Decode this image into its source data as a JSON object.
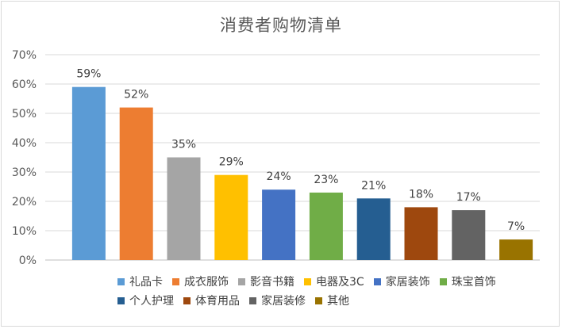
{
  "chart_data": {
    "type": "bar",
    "title": "消费者购物清单",
    "categories": [
      "礼品卡",
      "成衣服饰",
      "影音书籍",
      "电器及3C",
      "家居装饰",
      "珠宝首饰",
      "个人护理",
      "体育用品",
      "家居装修",
      "其他"
    ],
    "values": [
      59,
      52,
      35,
      29,
      24,
      23,
      21,
      18,
      17,
      7
    ],
    "value_labels": [
      "59%",
      "52%",
      "35%",
      "29%",
      "24%",
      "23%",
      "21%",
      "18%",
      "17%",
      "7%"
    ],
    "colors": [
      "#5b9bd5",
      "#ed7d31",
      "#a5a5a5",
      "#ffc000",
      "#4472c4",
      "#70ad47",
      "#255e91",
      "#9e480e",
      "#636363",
      "#997300"
    ],
    "y_ticks": [
      "0%",
      "10%",
      "20%",
      "30%",
      "40%",
      "50%",
      "60%",
      "70%"
    ],
    "ylim": [
      0,
      70
    ],
    "grid": true,
    "legend_position": "bottom",
    "xlabel": "",
    "ylabel": ""
  }
}
